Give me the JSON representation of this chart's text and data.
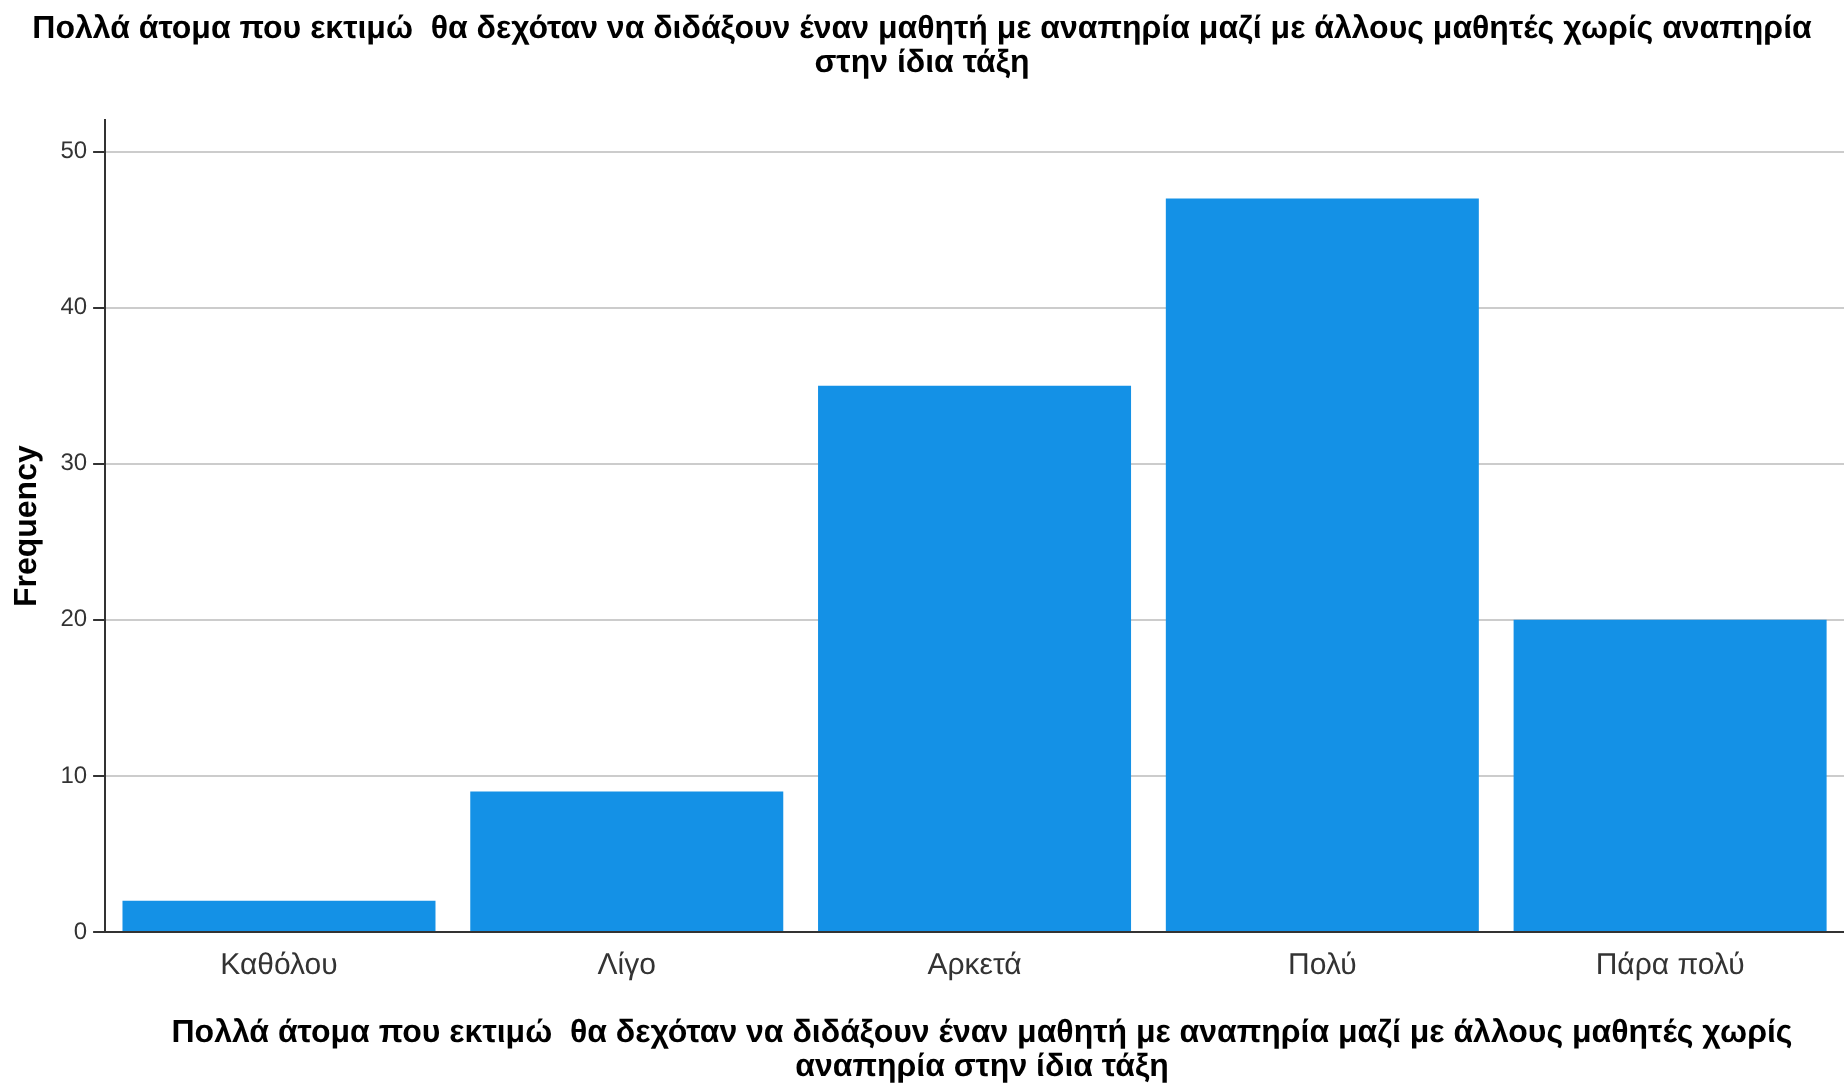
{
  "chart_data": {
    "type": "bar",
    "title": "Πολλά άτομα που εκτιμώ  θα δεχόταν να διδάξουν έναν μαθητή με αναπηρία μαζί με άλλους μαθητές χωρίς αναπηρία στην ίδια τάξη",
    "xlabel": "Πολλά άτομα που εκτιμώ  θα δεχόταν να διδάξουν έναν μαθητή με αναπηρία μαζί με άλλους μαθητές χωρίς αναπηρία στην ίδια τάξη",
    "ylabel": "Frequency",
    "categories": [
      "Καθόλου",
      "Λίγο",
      "Αρκετά",
      "Πολύ",
      "Πάρα πολύ"
    ],
    "values": [
      2,
      9,
      35,
      47,
      20
    ],
    "color": "#1491e6",
    "ylim": [
      0,
      52
    ],
    "yticks": [
      0,
      10,
      20,
      30,
      40,
      50
    ],
    "grid": "y",
    "legend": false
  }
}
